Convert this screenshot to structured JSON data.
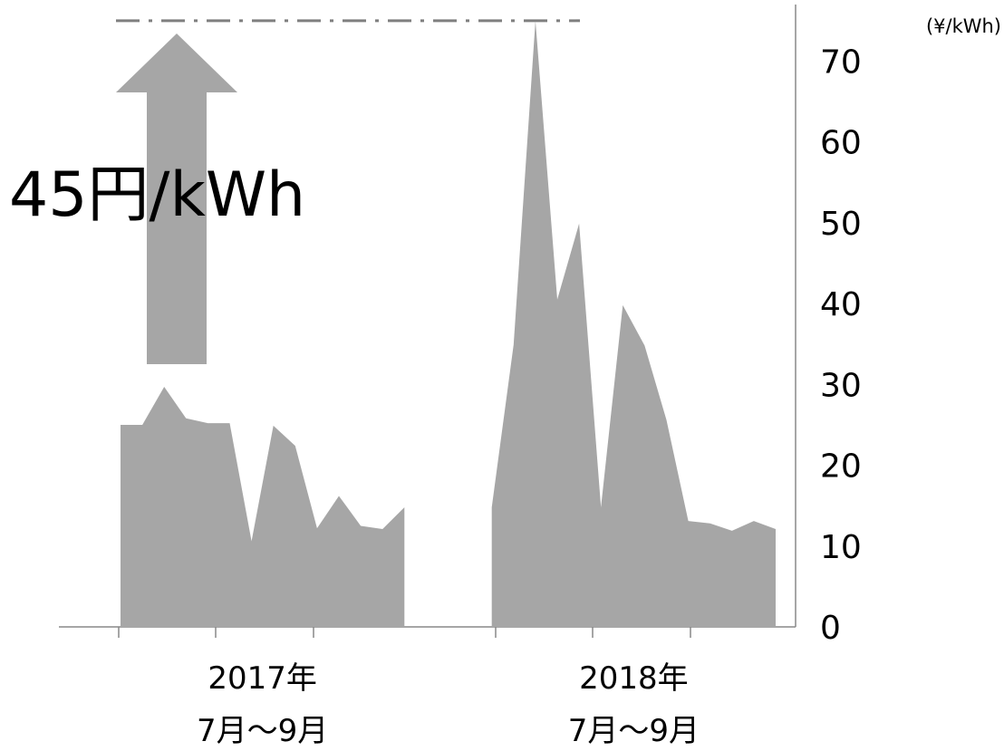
{
  "chart_data": {
    "type": "area",
    "unit_label": "(¥/kWh)",
    "annotation": "45円/kWh",
    "reference_line": 75,
    "groups": [
      {
        "lines": [
          "2017年",
          "7月～9月"
        ],
        "from": 0,
        "to": 13
      },
      {
        "lines": [
          "2018年",
          "7月～9月"
        ],
        "from": 17,
        "to": 30
      }
    ],
    "categories": [
      null,
      null,
      null,
      null,
      null,
      null,
      null,
      null,
      null,
      null,
      null,
      null,
      null,
      null,
      null,
      null,
      null,
      null,
      null,
      null,
      null,
      null,
      null,
      null,
      null,
      null,
      null,
      null,
      null,
      null,
      null
    ],
    "series": [
      {
        "color": "#a6a6a6",
        "values": [
          25,
          25,
          29.7,
          25.8,
          25.2,
          25.2,
          10.6,
          24.9,
          22.4,
          12.2,
          16.2,
          12.5,
          12.1,
          14.8,
          null,
          null,
          null,
          14.8,
          34.9,
          75,
          40.5,
          49.9,
          14.8,
          39.8,
          34.8,
          25.6,
          13.1,
          12.8,
          11.9,
          13.1,
          12.1
        ]
      }
    ],
    "ylim": [
      0,
      77
    ],
    "yticks": [
      0,
      10,
      20,
      30,
      40,
      50,
      60,
      70
    ]
  }
}
